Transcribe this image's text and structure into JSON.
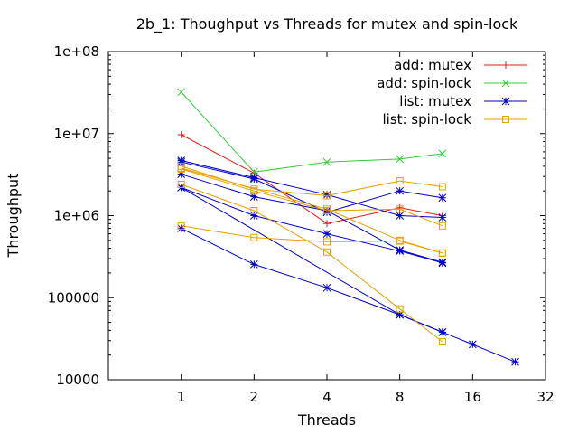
{
  "chart_data": {
    "type": "line",
    "title": "2b_1: Thoughput vs Threads for mutex and spin-lock",
    "xlabel": "Threads",
    "ylabel": "Throughput",
    "x_scale": "log2",
    "y_scale": "log10",
    "xlim": [
      0.5,
      32
    ],
    "ylim": [
      10000,
      100000000
    ],
    "x_ticks": [
      1,
      2,
      4,
      8,
      16,
      32
    ],
    "x_tick_labels": [
      "1",
      "2",
      "4",
      "8",
      "16",
      "32"
    ],
    "y_ticks": [
      10000,
      100000,
      1000000,
      10000000,
      100000000
    ],
    "y_tick_labels": [
      "10000",
      "100000",
      "1e+06",
      "1e+07",
      "1e+08"
    ],
    "grid": false,
    "legend_position": "top-right",
    "series": [
      {
        "name": "add: mutex",
        "color": "#e41a1c",
        "marker": "plus",
        "lines": [
          {
            "x": [
              1,
              2,
              4,
              8,
              12
            ],
            "y": [
              9700000,
              3300000,
              800000,
              1250000,
              1000000
            ]
          }
        ]
      },
      {
        "name": "add: spin-lock",
        "color": "#33cc33",
        "marker": "cross",
        "lines": [
          {
            "x": [
              1,
              2,
              4,
              8,
              12
            ],
            "y": [
              32000000,
              3400000,
              4500000,
              4900000,
              5700000
            ]
          }
        ]
      },
      {
        "name": "list: mutex",
        "color": "#0000cc",
        "marker": "star",
        "lines": [
          {
            "x": [
              1,
              2,
              4,
              8,
              12
            ],
            "y": [
              4700000,
              2900000,
              1800000,
              1000000,
              950000
            ]
          },
          {
            "x": [
              1,
              2,
              4,
              8,
              12
            ],
            "y": [
              4500000,
              2800000,
              1100000,
              2000000,
              1650000
            ]
          },
          {
            "x": [
              1,
              2,
              4,
              8,
              12
            ],
            "y": [
              3200000,
              1700000,
              1150000,
              380000,
              270000
            ]
          },
          {
            "x": [
              1,
              2,
              4,
              8,
              12
            ],
            "y": [
              2200000,
              1000000,
              600000,
              370000,
              265000
            ]
          },
          {
            "x": [
              1,
              2,
              4,
              8,
              12
            ],
            "y": [
              700000,
              255000,
              132000,
              62000,
              38000
            ]
          },
          {
            "x": [
              1,
              8,
              12,
              16,
              24
            ],
            "y": [
              2200000,
              62000,
              38000,
              27000,
              16500
            ]
          }
        ]
      },
      {
        "name": "list: spin-lock",
        "color": "#e8a000",
        "marker": "square",
        "lines": [
          {
            "x": [
              1,
              2,
              4,
              8,
              12
            ],
            "y": [
              4000000,
              2100000,
              1750000,
              2650000,
              2250000
            ]
          },
          {
            "x": [
              1,
              2,
              4,
              8,
              12
            ],
            "y": [
              3700000,
              2000000,
              1150000,
              1200000,
              750000
            ]
          },
          {
            "x": [
              1,
              2,
              4,
              8,
              12
            ],
            "y": [
              2400000,
              1150000,
              360000,
              73000,
              29000
            ]
          },
          {
            "x": [
              1,
              2,
              4,
              8,
              12
            ],
            "y": [
              750000,
              540000,
              480000,
              490000,
              350000
            ]
          },
          {
            "x": [
              1,
              4,
              8,
              12
            ],
            "y": [
              3800000,
              1200000,
              500000,
              350000
            ]
          }
        ]
      }
    ]
  }
}
